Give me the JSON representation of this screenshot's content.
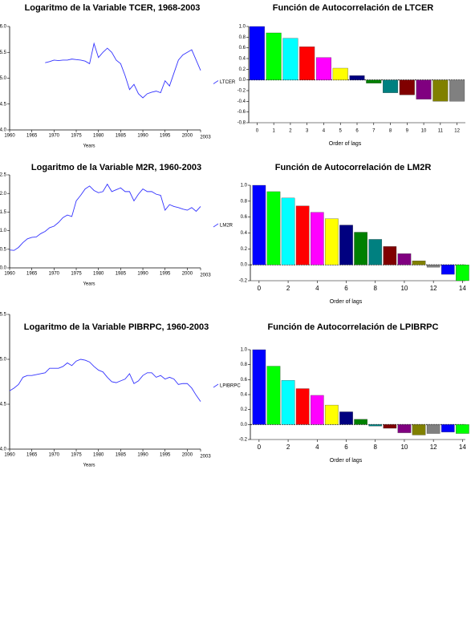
{
  "chart_data": [
    {
      "type": "line",
      "title": "Logaritmo de la Variable TCER, 1968-2003",
      "xlabel": "Years",
      "x": [
        1968,
        1969,
        1970,
        1971,
        1972,
        1973,
        1974,
        1975,
        1976,
        1977,
        1978,
        1979,
        1980,
        1981,
        1982,
        1983,
        1984,
        1985,
        1986,
        1987,
        1988,
        1989,
        1990,
        1991,
        1992,
        1993,
        1994,
        1995,
        1996,
        1997,
        1998,
        1999,
        2000,
        2001,
        2002,
        2003
      ],
      "series": [
        {
          "name": "LTCER",
          "color": "#3333ff",
          "values": [
            5.3,
            5.32,
            5.35,
            5.34,
            5.35,
            5.35,
            5.37,
            5.36,
            5.35,
            5.33,
            5.28,
            5.67,
            5.4,
            5.5,
            5.58,
            5.5,
            5.35,
            5.28,
            5.05,
            4.78,
            4.88,
            4.7,
            4.62,
            4.7,
            4.73,
            4.75,
            4.72,
            4.95,
            4.85,
            5.1,
            5.35,
            5.45,
            5.5,
            5.55,
            5.35,
            5.15
          ]
        }
      ],
      "xlim": [
        1960,
        2003
      ],
      "xticks": [
        1960,
        1965,
        1970,
        1975,
        1980,
        1985,
        1990,
        1995,
        2000,
        2003
      ],
      "ylim": [
        4.0,
        6.0
      ],
      "yticks": [
        {
          "value": 4.0,
          "label": "4.0"
        },
        4.5,
        {
          "value": 5.0,
          "label": "5.0"
        },
        5.5,
        {
          "value": 6.0,
          "label": "6.0"
        }
      ],
      "grid": false
    },
    {
      "type": "bar",
      "title": "Función de Autocorrelación de LTCER",
      "xlabel": "Order of lags",
      "x": [
        0,
        1,
        2,
        3,
        4,
        5,
        6,
        7,
        8,
        9,
        10,
        11,
        12
      ],
      "values": [
        1.0,
        0.88,
        0.78,
        0.62,
        0.42,
        0.22,
        0.08,
        -0.06,
        -0.24,
        -0.28,
        -0.36,
        -0.4,
        -0.4
      ],
      "colors": [
        "#0000ff",
        "#00ff00",
        "#00ffff",
        "#ff0000",
        "#ff00ff",
        "#ffff00",
        "#000080",
        "#008000",
        "#008080",
        "#800000",
        "#800080",
        "#808000",
        "#808080"
      ],
      "xlim": [
        -0.5,
        12.5
      ],
      "xticks": [
        0,
        1,
        2,
        3,
        4,
        5,
        6,
        7,
        8,
        9,
        10,
        11,
        12
      ],
      "ylim": [
        -0.8,
        1.0
      ],
      "yticks": [
        -0.8,
        -0.6,
        -0.4,
        -0.2,
        {
          "value": 0.0,
          "label": "0.0"
        },
        0.2,
        0.4,
        0.6,
        0.8,
        {
          "value": 1.0,
          "label": "1.0"
        }
      ],
      "grid": false
    },
    {
      "type": "line",
      "title": "Logaritmo de la Variable M2R, 1960-2003",
      "xlabel": "Years",
      "x": [
        1960,
        1961,
        1962,
        1963,
        1964,
        1965,
        1966,
        1967,
        1968,
        1969,
        1970,
        1971,
        1972,
        1973,
        1974,
        1975,
        1976,
        1977,
        1978,
        1979,
        1980,
        1981,
        1982,
        1983,
        1984,
        1985,
        1986,
        1987,
        1988,
        1989,
        1990,
        1991,
        1992,
        1993,
        1994,
        1995,
        1996,
        1997,
        1998,
        1999,
        2000,
        2001,
        2002,
        2003
      ],
      "series": [
        {
          "name": "LM2R",
          "color": "#3333ff",
          "values": [
            0.48,
            0.47,
            0.55,
            0.68,
            0.78,
            0.82,
            0.83,
            0.92,
            0.98,
            1.08,
            1.12,
            1.22,
            1.35,
            1.42,
            1.38,
            1.8,
            1.95,
            2.12,
            2.2,
            2.08,
            2.02,
            2.05,
            2.25,
            2.05,
            2.1,
            2.15,
            2.05,
            2.05,
            1.8,
            1.98,
            2.12,
            2.05,
            2.05,
            1.98,
            1.95,
            1.55,
            1.7,
            1.65,
            1.62,
            1.58,
            1.55,
            1.62,
            1.52,
            1.65
          ]
        }
      ],
      "xlim": [
        1960,
        2003
      ],
      "xticks": [
        1960,
        1965,
        1970,
        1975,
        1980,
        1985,
        1990,
        1995,
        2000,
        2003
      ],
      "ylim": [
        0.0,
        2.5
      ],
      "yticks": [
        {
          "value": 0.0,
          "label": "0.0"
        },
        0.5,
        {
          "value": 1.0,
          "label": "1.0"
        },
        1.5,
        {
          "value": 2.0,
          "label": "2.0"
        },
        2.5
      ],
      "grid": false
    },
    {
      "type": "bar",
      "title": "Función de Autocorrelación de LM2R",
      "xlabel": "Order of lags",
      "x": [
        0,
        1,
        2,
        3,
        4,
        5,
        6,
        7,
        8,
        9,
        10,
        11,
        12,
        13,
        14
      ],
      "values": [
        1.0,
        0.92,
        0.84,
        0.74,
        0.66,
        0.58,
        0.5,
        0.41,
        0.32,
        0.23,
        0.14,
        0.05,
        -0.03,
        -0.12,
        -0.2
      ],
      "colors": [
        "#0000ff",
        "#00ff00",
        "#00ffff",
        "#ff0000",
        "#ff00ff",
        "#ffff00",
        "#000080",
        "#008000",
        "#008080",
        "#800000",
        "#800080",
        "#808000",
        "#808080",
        "#0000ff",
        "#00ff00"
      ],
      "xlim": [
        -0.6,
        14.2
      ],
      "xticks": [
        0,
        2,
        4,
        6,
        8,
        10,
        12,
        14
      ],
      "ylim": [
        -0.2,
        1.0
      ],
      "yticks": [
        -0.2,
        {
          "value": 0.0,
          "label": "0.0"
        },
        0.2,
        0.4,
        0.6,
        0.8,
        {
          "value": 1.0,
          "label": "1.0"
        }
      ],
      "grid": false
    },
    {
      "type": "line",
      "title": "Logaritmo de la Variable PIBRPC, 1960-2003",
      "xlabel": "Years",
      "x": [
        1960,
        1961,
        1962,
        1963,
        1964,
        1965,
        1966,
        1967,
        1968,
        1969,
        1970,
        1971,
        1972,
        1973,
        1974,
        1975,
        1976,
        1977,
        1978,
        1979,
        1980,
        1981,
        1982,
        1983,
        1984,
        1985,
        1986,
        1987,
        1988,
        1989,
        1990,
        1991,
        1992,
        1993,
        1994,
        1995,
        1996,
        1997,
        1998,
        1999,
        2000,
        2001,
        2002,
        2003
      ],
      "series": [
        {
          "name": "LPIBRPC",
          "color": "#3333ff",
          "values": [
            4.65,
            4.68,
            4.72,
            4.8,
            4.82,
            4.82,
            4.83,
            4.84,
            4.85,
            4.9,
            4.9,
            4.9,
            4.92,
            4.96,
            4.93,
            4.98,
            5.0,
            4.99,
            4.97,
            4.92,
            4.88,
            4.86,
            4.8,
            4.75,
            4.74,
            4.76,
            4.78,
            4.84,
            4.73,
            4.76,
            4.82,
            4.85,
            4.85,
            4.8,
            4.82,
            4.78,
            4.8,
            4.78,
            4.72,
            4.73,
            4.73,
            4.68,
            4.6,
            4.53
          ]
        }
      ],
      "xlim": [
        1960,
        2003
      ],
      "xticks": [
        1960,
        1965,
        1970,
        1975,
        1980,
        1985,
        1990,
        1995,
        2000,
        2003
      ],
      "ylim": [
        4.0,
        5.5
      ],
      "yticks": [
        {
          "value": 4.0,
          "label": "4.0"
        },
        4.5,
        {
          "value": 5.0,
          "label": "5.0"
        },
        5.5
      ],
      "grid": false
    },
    {
      "type": "bar",
      "title": "Función de Autocorrelación de LPIBRPC",
      "xlabel": "Order of lags",
      "x": [
        0,
        1,
        2,
        3,
        4,
        5,
        6,
        7,
        8,
        9,
        10,
        11,
        12,
        13,
        14
      ],
      "values": [
        1.0,
        0.78,
        0.59,
        0.48,
        0.39,
        0.26,
        0.17,
        0.07,
        -0.02,
        -0.05,
        -0.11,
        -0.14,
        -0.12,
        -0.1,
        -0.12
      ],
      "colors": [
        "#0000ff",
        "#00ff00",
        "#00ffff",
        "#ff0000",
        "#ff00ff",
        "#ffff00",
        "#000080",
        "#008000",
        "#008080",
        "#800000",
        "#800080",
        "#808000",
        "#808080",
        "#0000ff",
        "#00ff00"
      ],
      "xlim": [
        -0.6,
        14.2
      ],
      "xticks": [
        0,
        2,
        4,
        6,
        8,
        10,
        12,
        14
      ],
      "ylim": [
        -0.2,
        1.0
      ],
      "yticks": [
        -0.2,
        {
          "value": 0.0,
          "label": "0.0"
        },
        0.2,
        0.4,
        0.6,
        0.8,
        {
          "value": 1.0,
          "label": "1.0"
        }
      ],
      "grid": false
    }
  ]
}
